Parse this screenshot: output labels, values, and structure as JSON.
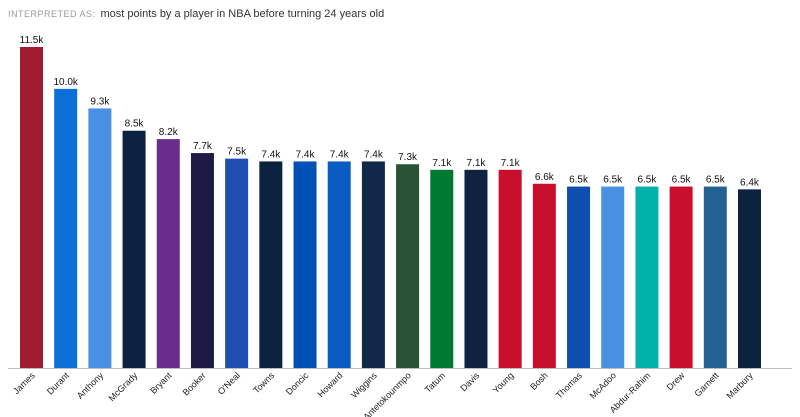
{
  "chart_data": {
    "type": "bar",
    "header_label": "INTERPRETED AS:",
    "title": "most points by a player in NBA before turning 24 years old",
    "categories": [
      "James",
      "Durant",
      "Anthony",
      "McGrady",
      "Bryant",
      "Booker",
      "O'Neal",
      "Towns",
      "Doncic",
      "Howard",
      "Wiggins",
      "Antetokounmpo",
      "Tatum",
      "Davis",
      "Young",
      "Bosh",
      "Thomas",
      "McAdoo",
      "Abdur-Rahim",
      "Drew",
      "Garnett",
      "Marbury"
    ],
    "values": [
      11.5,
      10.0,
      9.3,
      8.5,
      8.2,
      7.7,
      7.5,
      7.4,
      7.4,
      7.4,
      7.4,
      7.3,
      7.1,
      7.1,
      7.1,
      6.6,
      6.5,
      6.5,
      6.5,
      6.5,
      6.5,
      6.4
    ],
    "value_labels": [
      "11.5k",
      "10.0k",
      "9.3k",
      "8.5k",
      "8.2k",
      "7.7k",
      "7.5k",
      "7.4k",
      "7.4k",
      "7.4k",
      "7.4k",
      "7.3k",
      "7.1k",
      "7.1k",
      "7.1k",
      "6.6k",
      "6.5k",
      "6.5k",
      "6.5k",
      "6.5k",
      "6.5k",
      "6.4k"
    ],
    "colors": [
      "#9e1b32",
      "#0a6fd6",
      "#4a90e2",
      "#0b2240",
      "#6b2d8c",
      "#1d1a45",
      "#1d50b0",
      "#0c2340",
      "#0050b5",
      "#0a5bc4",
      "#12284b",
      "#2a5234",
      "#007a33",
      "#0f2240",
      "#c8102e",
      "#c8102e",
      "#0d4fb0",
      "#4a90e2",
      "#00b2a9",
      "#c8102e",
      "#236192",
      "#0c2340"
    ]
  }
}
